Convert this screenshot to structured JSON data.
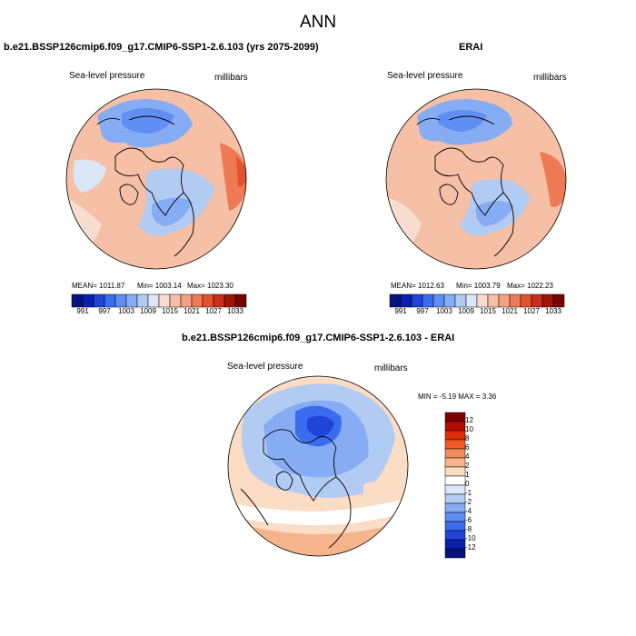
{
  "page_title": "ANN",
  "panels": [
    {
      "title": "b.e21.BSSP126cmip6.f09_g17.CMIP6-SSP1-2.6.103 (yrs 2075-2099)",
      "variable": "Sea-level pressure",
      "units": "millibars",
      "stats": {
        "mean": "MEAN= 1011.87",
        "min": "Min= 1003.14",
        "max": "Max= 1023.30"
      },
      "colorbar_labels": [
        "991",
        "997",
        "1003",
        "1009",
        "1015",
        "1021",
        "1027",
        "1033"
      ]
    },
    {
      "title": "ERAI",
      "variable": "Sea-level pressure",
      "units": "millibars",
      "stats": {
        "mean": "MEAN= 1012.63",
        "min": "Min= 1003.79",
        "max": "Max= 1022.23"
      },
      "colorbar_labels": [
        "991",
        "997",
        "1003",
        "1009",
        "1015",
        "1021",
        "1027",
        "1033"
      ]
    },
    {
      "title": "b.e21.BSSP126cmip6.f09_g17.CMIP6-SSP1-2.6.103 - ERAI",
      "variable": "Sea-level pressure",
      "units": "millibars",
      "stats_line": "MIN = -5.19 MAX = 3.36",
      "colorbar_labels": [
        "12",
        "10",
        "8",
        "6",
        "4",
        "2",
        "1",
        "0",
        "-1",
        "-2",
        "-4",
        "-6",
        "-8",
        "-10",
        "-12"
      ]
    }
  ],
  "colors": {
    "abs_scale": [
      "#06127d",
      "#0a1fb0",
      "#1f44d6",
      "#3a6cf0",
      "#5f8ef4",
      "#86acf4",
      "#b2cbf2",
      "#dbe6f6",
      "#f7dcd0",
      "#f6c0a6",
      "#f3a07e",
      "#ee7a55",
      "#e4532f",
      "#c8301a",
      "#9e1508",
      "#730400"
    ],
    "diff_scale": [
      "#7d0000",
      "#b30b00",
      "#dd2c06",
      "#ef5b25",
      "#f48c58",
      "#f6b48c",
      "#fbdcc4",
      "#ffffff",
      "#dbe6f6",
      "#b2cbf2",
      "#86acf4",
      "#5f8ef4",
      "#3a6cf0",
      "#1f44d6",
      "#0a1fb0",
      "#06127d"
    ],
    "coastline": "#000000"
  }
}
